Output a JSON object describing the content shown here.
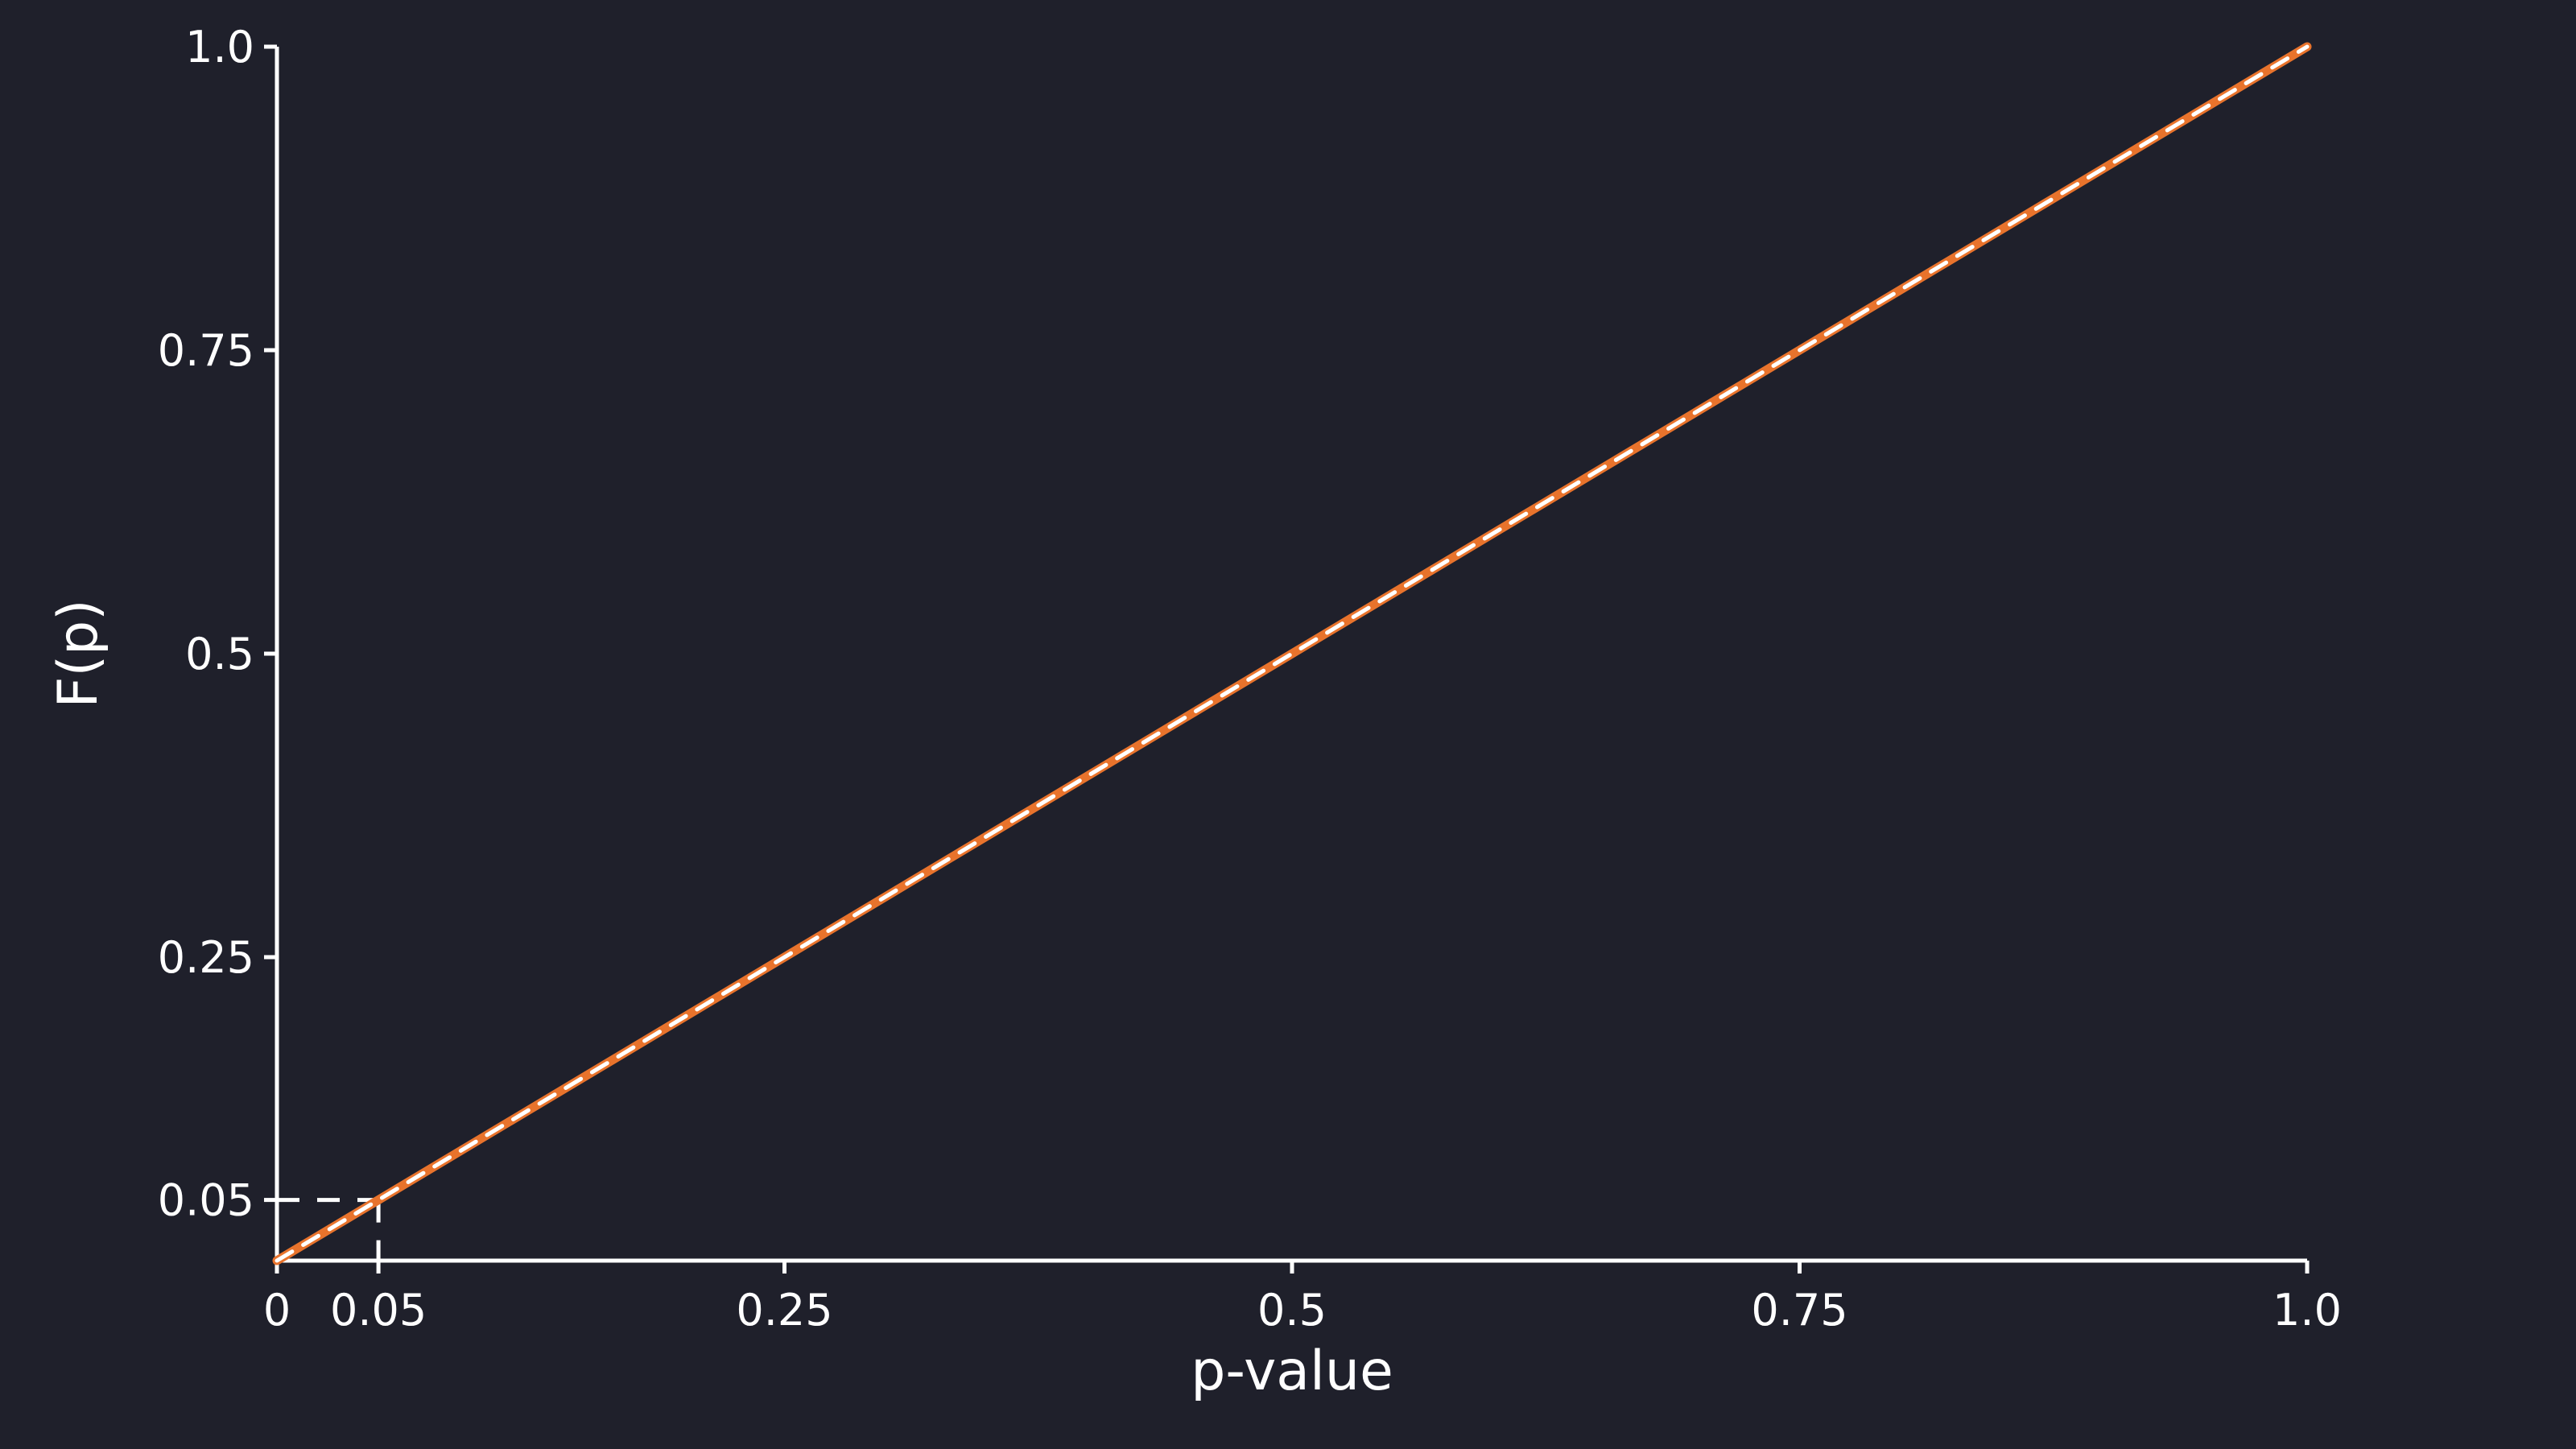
{
  "chart_data": {
    "type": "line",
    "title": "",
    "xlabel": "p-value",
    "ylabel": "F(p)",
    "xlim": [
      0,
      1.0
    ],
    "ylim": [
      0,
      1.0
    ],
    "x_ticks": [
      {
        "value": 0,
        "label": "0"
      },
      {
        "value": 0.05,
        "label": "0.05"
      },
      {
        "value": 0.25,
        "label": "0.25"
      },
      {
        "value": 0.5,
        "label": "0.5"
      },
      {
        "value": 0.75,
        "label": "0.75"
      },
      {
        "value": 1.0,
        "label": "1.0"
      }
    ],
    "y_ticks": [
      {
        "value": 0.05,
        "label": "0.05"
      },
      {
        "value": 0.25,
        "label": "0.25"
      },
      {
        "value": 0.5,
        "label": "0.5"
      },
      {
        "value": 0.75,
        "label": "0.75"
      },
      {
        "value": 1.0,
        "label": "1.0"
      }
    ],
    "grid": false,
    "legend": "none",
    "series": [
      {
        "color": "#e8732c",
        "style": "solid",
        "x": [
          0,
          0.05,
          0.1,
          0.2,
          0.3,
          0.4,
          0.5,
          0.6,
          0.7,
          0.8,
          0.9,
          1.0
        ],
        "y": [
          0,
          0.05,
          0.1,
          0.2,
          0.3,
          0.4,
          0.5,
          0.6,
          0.7,
          0.8,
          0.9,
          1.0
        ]
      },
      {
        "color": "#ffffff",
        "style": "dashed",
        "x": [
          0,
          1.0
        ],
        "y": [
          0,
          1.0
        ]
      }
    ],
    "annotations": [
      {
        "type": "threshold-guides",
        "x": 0.05,
        "y": 0.05,
        "style": "dashed",
        "color": "#ffffff"
      }
    ]
  }
}
